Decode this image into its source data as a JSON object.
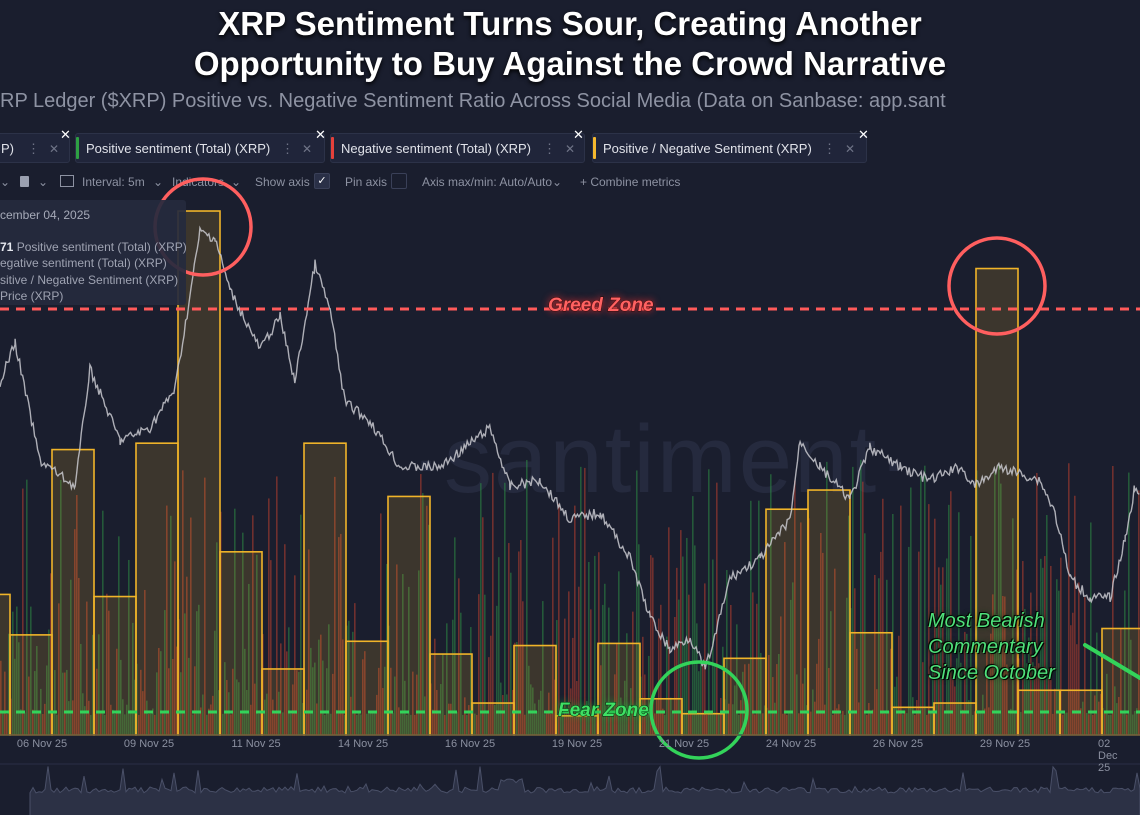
{
  "header": {
    "title_line1": "XRP Sentiment Turns Sour, Creating Another",
    "title_line2": "Opportunity to Buy Against the Crowd Narrative",
    "subtitle": "RP Ledger ($XRP) Positive vs. Negative Sentiment Ratio Across Social Media (Data on Sanbase: app.sant"
  },
  "metric_tabs": [
    {
      "label": "P)",
      "color": "#8a8fa0"
    },
    {
      "label": "Positive sentiment (Total) (XRP)",
      "color": "#2ea043"
    },
    {
      "label": "Negative sentiment (Total) (XRP)",
      "color": "#e5413b"
    },
    {
      "label": "Positive / Negative Sentiment (XRP)",
      "color": "#f5b82e"
    }
  ],
  "toolbar": {
    "interval": "Interval: 5m",
    "indicators": "Indicators",
    "show_axis": "Show axis",
    "pin_axis": "Pin axis",
    "axis_maxmin": "Axis max/min: Auto/Auto",
    "combine": "+ Combine metrics"
  },
  "tooltip": {
    "date": "cember 04, 2025",
    "value_prefix": "71",
    "lines": [
      " Positive sentiment (Total) (XRP)",
      "egative sentiment (Total) (XRP)",
      "sitive / Negative Sentiment (XRP)",
      "Price (XRP)"
    ]
  },
  "watermark": "·santiment·",
  "annotations": {
    "greed_zone": "Greed Zone",
    "fear_zone": "Fear Zone",
    "note_lines": [
      "Most Bearish",
      "Commentary",
      "Since October"
    ]
  },
  "colors": {
    "ratio": "#f0b429",
    "price": "#c9c9cf",
    "positive": "#2e8a45",
    "negative": "#b8402f",
    "greed": "#ff5a5a",
    "fear": "#33d35a"
  },
  "chart_data": {
    "type": "bar+line",
    "title": "XRP Ledger ($XRP) Positive vs. Negative Sentiment Ratio Across Social Media",
    "x_tick_labels": [
      "06 Nov 25",
      "09 Nov 25",
      "11 Nov 25",
      "14 Nov 25",
      "16 Nov 25",
      "19 Nov 25",
      "21 Nov 25",
      "24 Nov 25",
      "26 Nov 25",
      "29 Nov 25",
      "02 Dec 25"
    ],
    "ratio_daily": [
      0.66,
      0.47,
      1.34,
      0.65,
      1.37,
      2.46,
      0.86,
      0.31,
      1.37,
      0.44,
      1.12,
      0.38,
      0.15,
      0.42,
      0.09,
      0.43,
      0.17,
      0.1,
      0.36,
      1.06,
      1.15,
      0.48,
      0.13,
      0.15,
      2.19,
      0.21,
      0.21,
      0.5
    ],
    "ratio_ylim": [
      0,
      2.46
    ],
    "greed_threshold": 2.0,
    "fear_threshold": 0.11,
    "price_points": [
      [
        0,
        2.34
      ],
      [
        0.36,
        2.4
      ],
      [
        0.95,
        2.22
      ],
      [
        1.79,
        2.18
      ],
      [
        2.14,
        2.36
      ],
      [
        2.86,
        2.25
      ],
      [
        3.57,
        2.27
      ],
      [
        4.17,
        2.33
      ],
      [
        4.52,
        2.47
      ],
      [
        4.76,
        2.57
      ],
      [
        5.12,
        2.56
      ],
      [
        5.48,
        2.48
      ],
      [
        6.19,
        2.39
      ],
      [
        6.67,
        2.44
      ],
      [
        7.02,
        2.34
      ],
      [
        7.5,
        2.52
      ],
      [
        7.86,
        2.45
      ],
      [
        8.21,
        2.31
      ],
      [
        8.81,
        2.28
      ],
      [
        9.52,
        2.21
      ],
      [
        10.48,
        2.21
      ],
      [
        11.67,
        2.27
      ],
      [
        12.14,
        2.18
      ],
      [
        12.86,
        2.19
      ],
      [
        13.57,
        2.13
      ],
      [
        14.29,
        2.14
      ],
      [
        15,
        2.07
      ],
      [
        15.48,
        1.98
      ],
      [
        15.95,
        1.93
      ],
      [
        16.43,
        1.95
      ],
      [
        16.79,
        1.9
      ],
      [
        17.02,
        1.95
      ],
      [
        17.38,
        2.04
      ],
      [
        18.1,
        2.07
      ],
      [
        18.81,
        2.13
      ],
      [
        19.05,
        2.25
      ],
      [
        19.52,
        2.21
      ],
      [
        20.24,
        2.16
      ],
      [
        20.71,
        2.24
      ],
      [
        21.43,
        2.21
      ],
      [
        22.14,
        2.19
      ],
      [
        22.86,
        2.21
      ],
      [
        23.21,
        2.18
      ],
      [
        23.81,
        2.21
      ],
      [
        24.76,
        2.19
      ],
      [
        25.12,
        2.14
      ],
      [
        25.48,
        2.04
      ],
      [
        25.95,
        2.01
      ],
      [
        26.43,
        2.01
      ],
      [
        26.79,
        2.1
      ],
      [
        27.02,
        2.18
      ],
      [
        27.14,
        2.16
      ]
    ],
    "price_ylim": [
      1.8,
      2.6
    ],
    "legend": [
      "Positive sentiment (Total) (XRP)",
      "Negative sentiment (Total) (XRP)",
      "Positive / Negative Sentiment (XRP)",
      "Price (XRP)"
    ]
  }
}
